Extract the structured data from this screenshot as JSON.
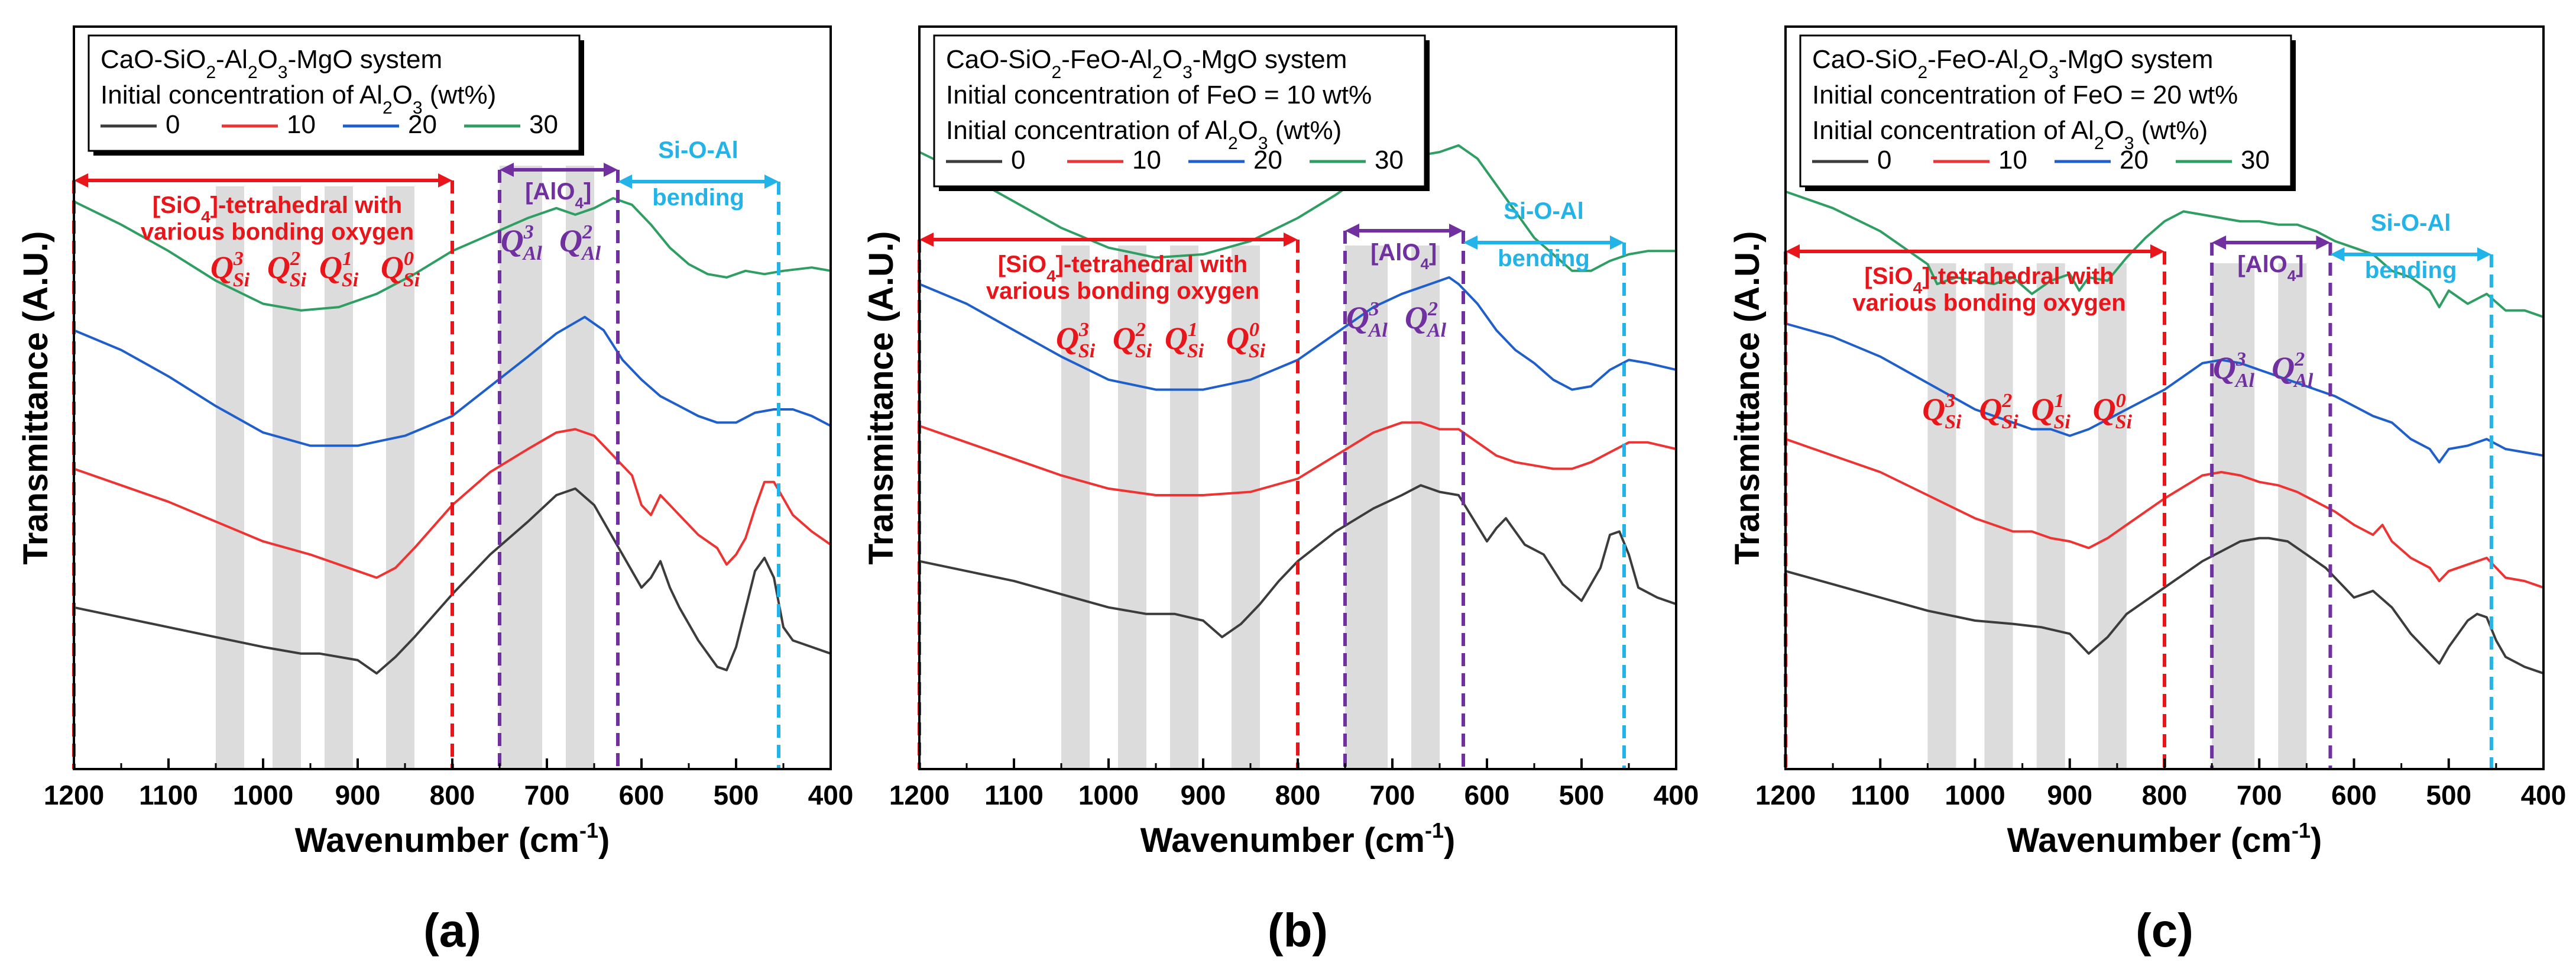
{
  "colors": {
    "0": "#3c3c3c",
    "10": "#ee3333",
    "20": "#1f5fcc",
    "30": "#2e9e62",
    "sio4": "#e8161b",
    "alo4": "#7030a0",
    "sioal": "#22b4e8",
    "band": "#dcdcdc"
  },
  "annotations": {
    "sio4_line1": "[SiO",
    "sio4_sub": "4",
    "sio4_line1_end": "]-tetrahedral with",
    "sio4_line2": "various bonding oxygen",
    "alo4_pre": "[AlO",
    "alo4_sub": "4",
    "alo4_post": "]",
    "sioal_line1": "Si-O-Al",
    "sioal_line2": "bending",
    "q_letter": "Q",
    "q_si_sub": "Si",
    "q_al_sub": "Al",
    "q_si_sup": [
      "3",
      "2",
      "1",
      "0"
    ],
    "q_al_sup": [
      "3",
      "2"
    ]
  },
  "chart_data": [
    {
      "type": "line",
      "panel_label": "(a)",
      "title_line1": "CaO-SiO2-Al2O3-MgO system",
      "title_parts": [
        "CaO-SiO",
        "2",
        "-Al",
        "2",
        "O",
        "3",
        "-MgO system"
      ],
      "subtitle_lines": [
        {
          "parts": [
            "Initial concentration of Al",
            "2",
            "O",
            "3",
            " (wt%)"
          ]
        }
      ],
      "xlabel": "Wavenumber (cm",
      "xlabel_sup": "-1",
      "xlabel_end": ")",
      "ylabel": "Transmittance (A.U.)",
      "xlim": [
        1200,
        400
      ],
      "xticks": [
        "1200",
        "1100",
        "1000",
        "900",
        "800",
        "700",
        "600",
        "500",
        "400"
      ],
      "legend": [
        "0",
        "10",
        "20",
        "30"
      ],
      "regions": {
        "sio4": [
          1200,
          800
        ],
        "alo4": [
          750,
          625
        ],
        "sioal": [
          625,
          455
        ]
      },
      "bands": [
        [
          1050,
          1020
        ],
        [
          990,
          960
        ],
        [
          935,
          905
        ],
        [
          870,
          840
        ],
        [
          750,
          705
        ],
        [
          680,
          650
        ]
      ],
      "series": [
        {
          "name": "0",
          "x": [
            1200,
            1150,
            1100,
            1050,
            1000,
            960,
            940,
            900,
            880,
            860,
            840,
            800,
            760,
            720,
            690,
            670,
            650,
            630,
            600,
            590,
            580,
            570,
            560,
            540,
            520,
            510,
            500,
            480,
            470,
            460,
            450,
            440,
            420,
            400
          ],
          "y": [
            0.24,
            0.21,
            0.18,
            0.15,
            0.12,
            0.1,
            0.1,
            0.08,
            0.04,
            0.09,
            0.15,
            0.28,
            0.4,
            0.5,
            0.58,
            0.6,
            0.55,
            0.45,
            0.3,
            0.33,
            0.38,
            0.3,
            0.24,
            0.14,
            0.06,
            0.05,
            0.12,
            0.35,
            0.39,
            0.33,
            0.18,
            0.14,
            0.12,
            0.1
          ]
        },
        {
          "name": "10",
          "x": [
            1200,
            1150,
            1100,
            1050,
            1000,
            950,
            900,
            880,
            860,
            840,
            800,
            760,
            720,
            690,
            670,
            650,
            630,
            610,
            600,
            590,
            580,
            560,
            540,
            520,
            510,
            500,
            490,
            480,
            470,
            460,
            440,
            420,
            400
          ],
          "y": [
            0.66,
            0.61,
            0.56,
            0.5,
            0.44,
            0.4,
            0.35,
            0.33,
            0.36,
            0.42,
            0.55,
            0.65,
            0.72,
            0.77,
            0.78,
            0.76,
            0.7,
            0.64,
            0.55,
            0.52,
            0.58,
            0.52,
            0.46,
            0.42,
            0.37,
            0.4,
            0.45,
            0.54,
            0.62,
            0.62,
            0.52,
            0.47,
            0.43
          ]
        },
        {
          "name": "20",
          "x": [
            1200,
            1150,
            1100,
            1050,
            1000,
            950,
            900,
            850,
            800,
            760,
            720,
            690,
            660,
            640,
            620,
            600,
            580,
            560,
            540,
            520,
            500,
            480,
            460,
            440,
            420,
            400
          ],
          "y": [
            1.08,
            1.02,
            0.94,
            0.85,
            0.77,
            0.73,
            0.73,
            0.76,
            0.82,
            0.91,
            1.0,
            1.07,
            1.12,
            1.08,
            0.99,
            0.93,
            0.88,
            0.85,
            0.82,
            0.8,
            0.8,
            0.83,
            0.84,
            0.84,
            0.82,
            0.79
          ]
        },
        {
          "name": "30",
          "x": [
            1200,
            1150,
            1100,
            1050,
            1000,
            960,
            920,
            880,
            840,
            800,
            760,
            720,
            690,
            670,
            650,
            630,
            610,
            590,
            570,
            550,
            530,
            510,
            490,
            470,
            450,
            420,
            400
          ],
          "y": [
            1.47,
            1.4,
            1.32,
            1.23,
            1.16,
            1.14,
            1.15,
            1.19,
            1.25,
            1.32,
            1.37,
            1.42,
            1.45,
            1.43,
            1.45,
            1.48,
            1.46,
            1.4,
            1.33,
            1.28,
            1.25,
            1.24,
            1.26,
            1.25,
            1.26,
            1.27,
            1.26
          ]
        }
      ]
    },
    {
      "type": "line",
      "panel_label": "(b)",
      "title_parts": [
        "CaO-SiO",
        "2",
        "-FeO-Al",
        "2",
        "O",
        "3",
        "-MgO system"
      ],
      "subtitle_lines": [
        {
          "parts": [
            "Initial concentration of FeO = 10 wt%"
          ]
        },
        {
          "parts": [
            "Initial concentration of Al",
            "2",
            "O",
            "3",
            " (wt%)"
          ]
        }
      ],
      "xlabel": "Wavenumber (cm",
      "xlabel_sup": "-1",
      "xlabel_end": ")",
      "ylabel": "Transmittance (A.U.)",
      "xlim": [
        1200,
        400
      ],
      "xticks": [
        "1200",
        "1100",
        "1000",
        "900",
        "800",
        "700",
        "600",
        "500",
        "400"
      ],
      "legend": [
        "0",
        "10",
        "20",
        "30"
      ],
      "regions": {
        "sio4": [
          1200,
          800
        ],
        "alo4": [
          750,
          625
        ],
        "sioal": [
          625,
          455
        ]
      },
      "bands": [
        [
          1050,
          1020
        ],
        [
          990,
          960
        ],
        [
          935,
          905
        ],
        [
          870,
          840
        ],
        [
          750,
          705
        ],
        [
          680,
          650
        ]
      ],
      "series": [
        {
          "name": "0",
          "x": [
            1200,
            1150,
            1100,
            1050,
            1000,
            960,
            930,
            900,
            880,
            860,
            840,
            820,
            800,
            760,
            720,
            690,
            670,
            650,
            630,
            600,
            590,
            580,
            560,
            540,
            520,
            500,
            480,
            470,
            460,
            450,
            440,
            420,
            400
          ],
          "y": [
            0.38,
            0.35,
            0.32,
            0.28,
            0.24,
            0.22,
            0.22,
            0.2,
            0.15,
            0.19,
            0.25,
            0.32,
            0.38,
            0.47,
            0.54,
            0.58,
            0.61,
            0.59,
            0.58,
            0.44,
            0.48,
            0.51,
            0.43,
            0.4,
            0.31,
            0.26,
            0.36,
            0.46,
            0.47,
            0.4,
            0.3,
            0.27,
            0.25
          ]
        },
        {
          "name": "10",
          "x": [
            1200,
            1150,
            1100,
            1050,
            1000,
            950,
            900,
            850,
            800,
            760,
            720,
            690,
            670,
            650,
            630,
            610,
            590,
            570,
            550,
            530,
            510,
            490,
            470,
            450,
            430,
            400
          ],
          "y": [
            0.79,
            0.74,
            0.69,
            0.64,
            0.6,
            0.58,
            0.58,
            0.59,
            0.63,
            0.7,
            0.77,
            0.8,
            0.8,
            0.78,
            0.78,
            0.74,
            0.7,
            0.68,
            0.67,
            0.66,
            0.66,
            0.68,
            0.71,
            0.74,
            0.74,
            0.72
          ]
        },
        {
          "name": "20",
          "x": [
            1200,
            1150,
            1100,
            1050,
            1000,
            950,
            900,
            850,
            800,
            760,
            720,
            690,
            660,
            640,
            630,
            610,
            590,
            570,
            550,
            530,
            510,
            490,
            470,
            450,
            430,
            400
          ],
          "y": [
            1.22,
            1.16,
            1.08,
            1.0,
            0.93,
            0.9,
            0.9,
            0.93,
            0.99,
            1.07,
            1.15,
            1.19,
            1.22,
            1.24,
            1.22,
            1.16,
            1.08,
            1.02,
            0.98,
            0.93,
            0.9,
            0.91,
            0.96,
            0.99,
            0.98,
            0.96
          ]
        },
        {
          "name": "30",
          "x": [
            1200,
            1150,
            1100,
            1050,
            1000,
            950,
            900,
            850,
            800,
            760,
            720,
            690,
            670,
            650,
            630,
            610,
            590,
            570,
            550,
            530,
            510,
            490,
            470,
            450,
            430,
            400
          ],
          "y": [
            1.62,
            1.55,
            1.47,
            1.39,
            1.33,
            1.3,
            1.31,
            1.35,
            1.42,
            1.49,
            1.57,
            1.6,
            1.61,
            1.62,
            1.64,
            1.6,
            1.52,
            1.44,
            1.36,
            1.31,
            1.26,
            1.26,
            1.29,
            1.31,
            1.32,
            1.32
          ]
        }
      ]
    },
    {
      "type": "line",
      "panel_label": "(c)",
      "title_parts": [
        "CaO-SiO",
        "2",
        "-FeO-Al",
        "2",
        "O",
        "3",
        "-MgO system"
      ],
      "subtitle_lines": [
        {
          "parts": [
            "Initial concentration of FeO = 20 wt%"
          ]
        },
        {
          "parts": [
            "Initial concentration of Al",
            "2",
            "O",
            "3",
            " (wt%)"
          ]
        }
      ],
      "xlabel": "Wavenumber (cm",
      "xlabel_sup": "-1",
      "xlabel_end": ")",
      "ylabel": "Transmittance (A.U.)",
      "xlim": [
        1200,
        400
      ],
      "xticks": [
        "1200",
        "1100",
        "1000",
        "900",
        "800",
        "700",
        "600",
        "500",
        "400"
      ],
      "legend": [
        "0",
        "10",
        "20",
        "30"
      ],
      "regions": {
        "sio4": [
          1200,
          800
        ],
        "alo4": [
          750,
          625
        ],
        "sioal": [
          625,
          455
        ]
      },
      "bands": [
        [
          1050,
          1020
        ],
        [
          990,
          960
        ],
        [
          935,
          905
        ],
        [
          870,
          840
        ],
        [
          750,
          705
        ],
        [
          680,
          650
        ]
      ],
      "series": [
        {
          "name": "0",
          "x": [
            1200,
            1150,
            1100,
            1050,
            1000,
            960,
            930,
            900,
            880,
            860,
            840,
            800,
            760,
            720,
            700,
            690,
            670,
            650,
            630,
            610,
            600,
            580,
            560,
            540,
            520,
            510,
            500,
            480,
            470,
            460,
            450,
            440,
            420,
            400
          ],
          "y": [
            0.35,
            0.31,
            0.27,
            0.23,
            0.2,
            0.19,
            0.18,
            0.16,
            0.1,
            0.15,
            0.22,
            0.3,
            0.38,
            0.44,
            0.45,
            0.45,
            0.44,
            0.4,
            0.36,
            0.3,
            0.27,
            0.29,
            0.24,
            0.16,
            0.1,
            0.07,
            0.12,
            0.2,
            0.22,
            0.21,
            0.14,
            0.09,
            0.06,
            0.04
          ]
        },
        {
          "name": "10",
          "x": [
            1200,
            1150,
            1100,
            1050,
            1000,
            960,
            940,
            920,
            900,
            880,
            860,
            840,
            800,
            760,
            740,
            720,
            700,
            680,
            660,
            640,
            620,
            600,
            580,
            570,
            560,
            540,
            520,
            510,
            500,
            480,
            460,
            440,
            420,
            400
          ],
          "y": [
            0.75,
            0.7,
            0.65,
            0.58,
            0.51,
            0.47,
            0.47,
            0.45,
            0.44,
            0.42,
            0.45,
            0.49,
            0.57,
            0.64,
            0.65,
            0.64,
            0.62,
            0.61,
            0.59,
            0.56,
            0.53,
            0.49,
            0.46,
            0.49,
            0.44,
            0.39,
            0.36,
            0.32,
            0.35,
            0.37,
            0.39,
            0.33,
            0.32,
            0.3
          ]
        },
        {
          "name": "20",
          "x": [
            1200,
            1150,
            1100,
            1050,
            1000,
            960,
            940,
            920,
            900,
            880,
            860,
            840,
            800,
            760,
            740,
            720,
            700,
            680,
            660,
            640,
            620,
            600,
            580,
            560,
            540,
            520,
            510,
            500,
            480,
            460,
            440,
            420,
            400
          ],
          "y": [
            1.1,
            1.06,
            1.0,
            0.92,
            0.84,
            0.8,
            0.78,
            0.78,
            0.76,
            0.78,
            0.81,
            0.84,
            0.9,
            0.98,
            0.99,
            0.98,
            0.96,
            0.94,
            0.92,
            0.9,
            0.88,
            0.85,
            0.82,
            0.8,
            0.75,
            0.72,
            0.68,
            0.72,
            0.73,
            0.75,
            0.72,
            0.71,
            0.7
          ]
        },
        {
          "name": "30",
          "x": [
            1200,
            1150,
            1100,
            1050,
            1040,
            1020,
            1000,
            980,
            960,
            940,
            920,
            900,
            890,
            880,
            860,
            840,
            820,
            800,
            780,
            760,
            740,
            720,
            700,
            680,
            660,
            640,
            620,
            600,
            580,
            560,
            540,
            520,
            510,
            500,
            480,
            460,
            440,
            420,
            400
          ],
          "y": [
            1.5,
            1.45,
            1.38,
            1.28,
            1.22,
            1.24,
            1.23,
            1.22,
            1.24,
            1.19,
            1.23,
            1.25,
            1.2,
            1.24,
            1.23,
            1.3,
            1.36,
            1.41,
            1.44,
            1.43,
            1.42,
            1.41,
            1.41,
            1.4,
            1.4,
            1.38,
            1.35,
            1.33,
            1.31,
            1.26,
            1.24,
            1.2,
            1.15,
            1.2,
            1.16,
            1.19,
            1.14,
            1.14,
            1.12
          ]
        }
      ]
    }
  ]
}
